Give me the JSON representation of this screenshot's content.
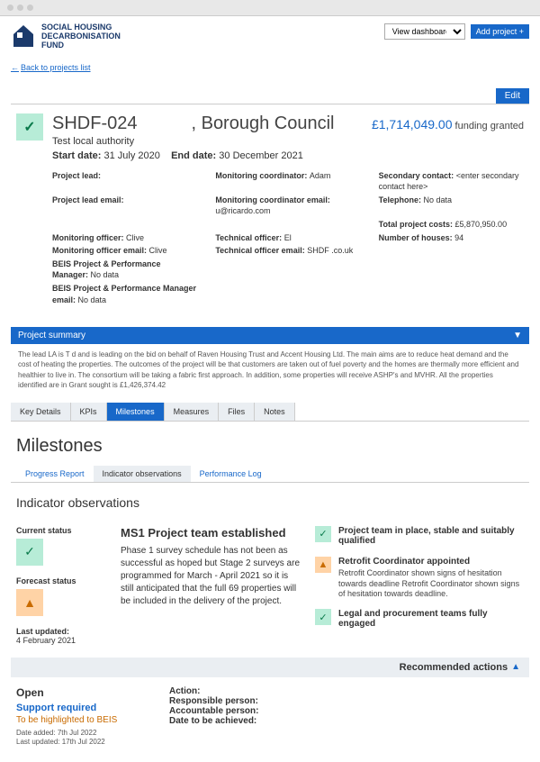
{
  "brand": {
    "line1": "SOCIAL HOUSING",
    "line2": "DECARBONISATION",
    "line3": "FUND",
    "logo_color": "#1b3a6b"
  },
  "header": {
    "view_dashboards": "View dashboards",
    "add_project": "Add project +"
  },
  "back_link": "Back to projects list",
  "edit_btn": "Edit",
  "project": {
    "code": "SHDF-024",
    "council": ", Borough Council",
    "subtitle": "Test local authority",
    "start_label": "Start date:",
    "start_date": "31 July 2020",
    "end_label": "End date:",
    "end_date": "30 December 2021",
    "funding_amount": "£1,714,049.00",
    "funding_text": "funding granted"
  },
  "info": [
    {
      "lbl": "Project lead:",
      "val": ""
    },
    {
      "lbl": "Monitoring coordinator:",
      "val": "Adam"
    },
    {
      "lbl": "Secondary contact:",
      "val": "<enter secondary contact here>"
    },
    {
      "lbl": "Project lead email:",
      "val": ""
    },
    {
      "lbl": "Monitoring coordinator email:",
      "val": "u@ricardo.com"
    },
    {
      "lbl": "Telephone:",
      "val": "No data"
    },
    {
      "lbl": "",
      "val": ""
    },
    {
      "lbl": "",
      "val": ""
    },
    {
      "lbl": "Total project costs:",
      "val": "£5,870,950.00"
    },
    {
      "lbl": "Monitoring officer:",
      "val": "Clive"
    },
    {
      "lbl": "Technical officer:",
      "val": "El"
    },
    {
      "lbl": "Number of houses:",
      "val": "94"
    },
    {
      "lbl": "Monitoring officer email:",
      "val": "Clive"
    },
    {
      "lbl": "Technical officer email:",
      "val": "SHDF        .co.uk"
    },
    {
      "lbl": "",
      "val": ""
    },
    {
      "lbl": "BEIS Project & Performance Manager:",
      "val": "No data"
    },
    {
      "lbl": "",
      "val": ""
    },
    {
      "lbl": "",
      "val": ""
    },
    {
      "lbl": "BEIS Project & Performance Manager email:",
      "val": "No data"
    },
    {
      "lbl": "",
      "val": ""
    },
    {
      "lbl": "",
      "val": ""
    }
  ],
  "summary": {
    "bar_label": "Project summary",
    "text": "The lead LA is T                  d and is leading on the bid on behalf of Raven Housing Trust and Accent Housing Ltd. The main aims are to reduce heat demand and the cost of heating the properties. The outcomes of the project will be that customers are taken out of fuel poverty and the homes are thermally more efficient and healthier to live in. The consortium will be taking a fabric first approach. In addition, some properties will receive ASHP's and MVHR. All the properties identified are in            Grant sought is £1,426,374.42"
  },
  "tabs": [
    "Key Details",
    "KPIs",
    "Milestones",
    "Measures",
    "Files",
    "Notes"
  ],
  "active_tab": "Milestones",
  "section_title": "Milestones",
  "subtabs": [
    "Progress Report",
    "Indicator observations",
    "Performance Log"
  ],
  "active_subtab": "Indicator observations",
  "sub_heading": "Indicator observations",
  "obs": {
    "current_label": "Current status",
    "forecast_label": "Forecast status",
    "last_updated_label": "Last updated:",
    "last_updated_date": "4 February 2021",
    "ms_title": "MS1 Project team established",
    "ms_desc": "Phase 1 survey schedule has not been as successful as hoped but Stage 2 surveys are programmed for March - April 2021 so it is still anticipated that the full 69 properties will be included in the delivery of the project.",
    "indicators": [
      {
        "status": "green",
        "head": "Project team in place, stable and suitably qualified",
        "desc": ""
      },
      {
        "status": "amber",
        "head": "Retrofit Coordinator appointed",
        "desc": "Retrofit Coordinator shown signs of hesitation towards deadline Retrofit Coordinator shown signs of hesitation towards deadline."
      },
      {
        "status": "green",
        "head": "Legal and procurement teams fully engaged",
        "desc": ""
      }
    ]
  },
  "rec": {
    "bar_label": "Recommended actions",
    "status": "Open",
    "link": "Support required",
    "note": "To be highlighted to BEIS",
    "date_added": "Date added: 7th Jul 2022",
    "last_updated": "Last updated: 17th Jul 2022",
    "action_label": "Action:",
    "resp_label": "Responsible person:",
    "acc_label": "Accountable person:",
    "date_achieved_label": "Date to be achieved:"
  },
  "colors": {
    "primary": "#1868c9",
    "green_bg": "#b7ecd7",
    "green_fg": "#0a7a4b",
    "amber_bg": "#ffd3a6",
    "amber_fg": "#c96b00"
  }
}
